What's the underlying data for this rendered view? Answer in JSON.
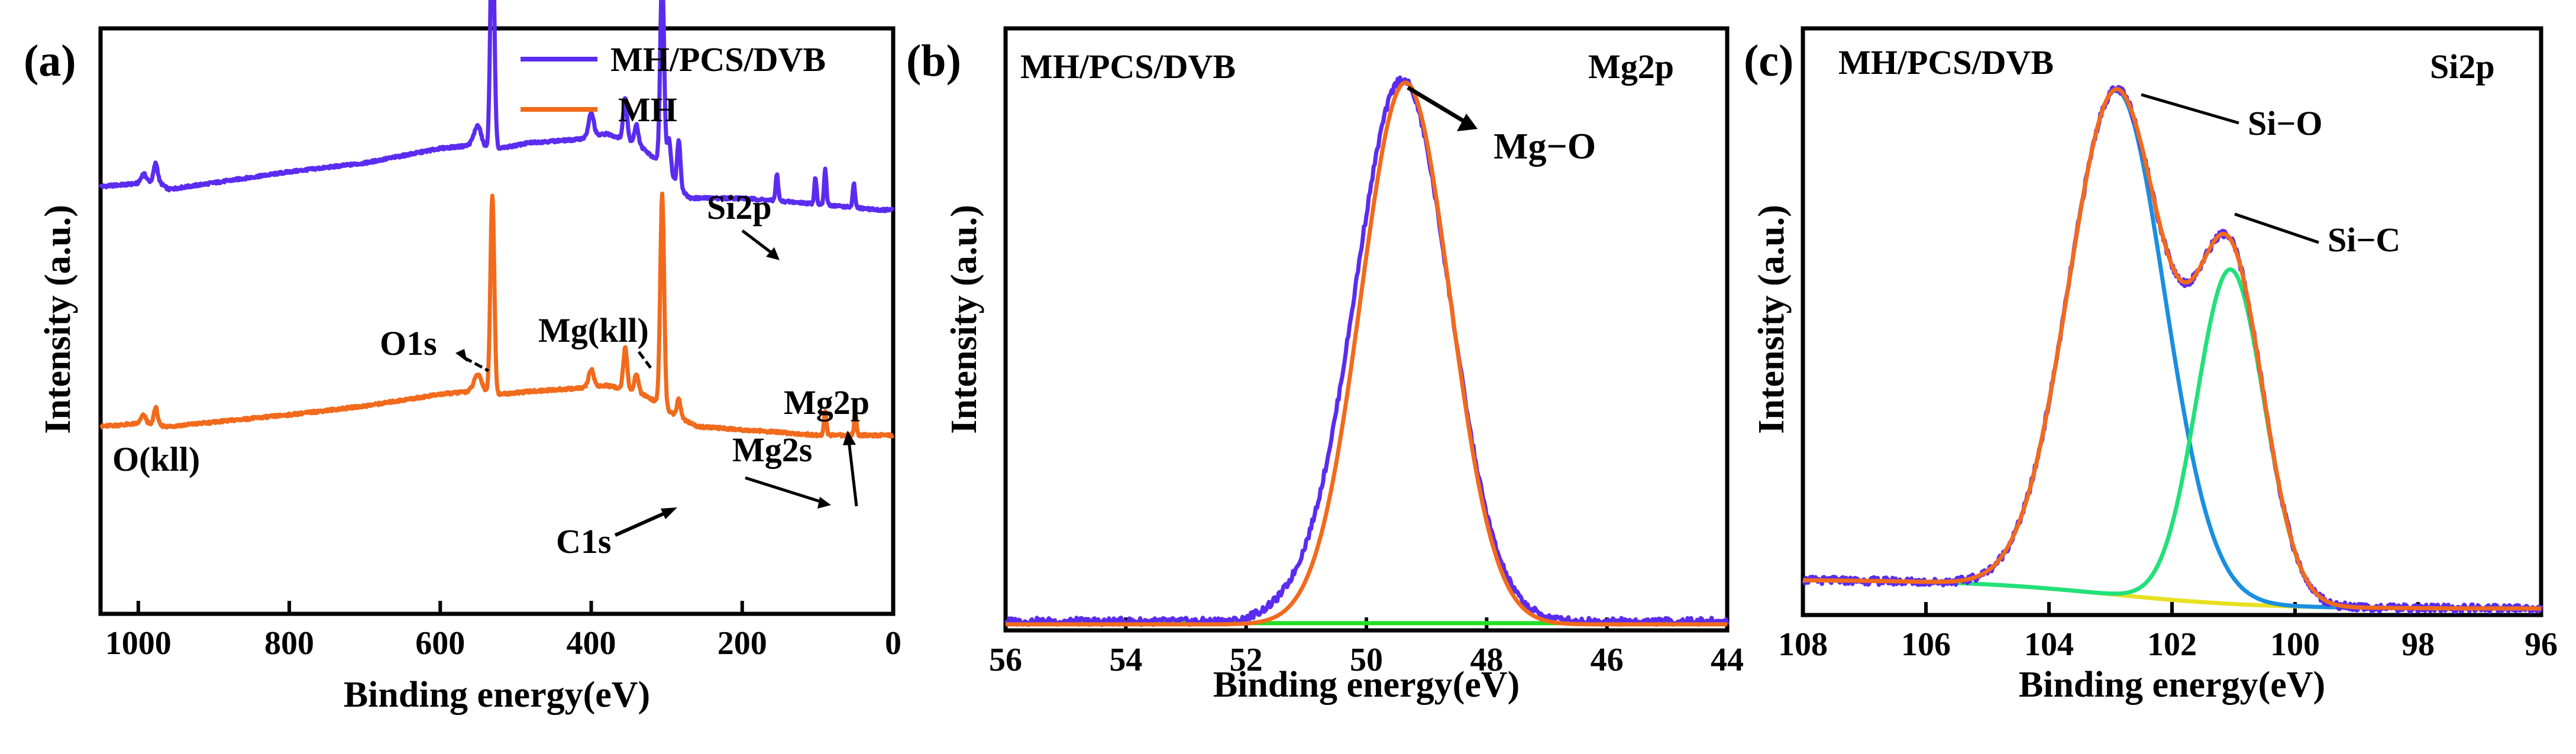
{
  "chart_data": [
    {
      "type": "line",
      "panel_label": "(a)",
      "xlabel": "Binding energy(eV)",
      "ylabel": "Intensity (a.u.)",
      "xlim": [
        1050,
        0
      ],
      "ylim": [
        0,
        100
      ],
      "xticks": [
        "1000",
        "800",
        "600",
        "400",
        "200",
        "0"
      ],
      "xtick_values": [
        1000,
        800,
        600,
        400,
        200,
        0
      ],
      "legend": [
        "MH/PCS/DVB",
        "MH"
      ],
      "series": [
        {
          "name": "MH/PCS/DVB",
          "color": "#5b2cf0",
          "baseline": [
            [
              1050,
              73
            ],
            [
              1000,
              73.5
            ],
            [
              975,
              74
            ],
            [
              960,
              72.5
            ],
            [
              800,
              75.5
            ],
            [
              700,
              77
            ],
            [
              600,
              79.5
            ],
            [
              560,
              80
            ],
            [
              545,
              79
            ],
            [
              520,
              79.5
            ],
            [
              480,
              80.5
            ],
            [
              420,
              81
            ],
            [
              380,
              82
            ],
            [
              340,
              80.5
            ],
            [
              310,
              77
            ],
            [
              290,
              74
            ],
            [
              270,
              71
            ],
            [
              200,
              71
            ],
            [
              150,
              70.5
            ],
            [
              100,
              70
            ],
            [
              60,
              69.5
            ],
            [
              20,
              69
            ],
            [
              0,
              69
            ]
          ],
          "peaks": [
            [
              993,
              1.5,
              4
            ],
            [
              977,
              3,
              3
            ],
            [
              550,
              4,
              6
            ],
            [
              531,
              41,
              3
            ],
            [
              400,
              4,
              4
            ],
            [
              355,
              7,
              3
            ],
            [
              340,
              3,
              3
            ],
            [
              306,
              33,
              3
            ],
            [
              297,
              6,
              3
            ],
            [
              284,
              8,
              2.5
            ],
            [
              154,
              4.5,
              2
            ],
            [
              103,
              4.5,
              1.8
            ],
            [
              90,
              6,
              1.8
            ],
            [
              52,
              4,
              1.8
            ]
          ]
        },
        {
          "name": "MH",
          "color": "#f26a1c",
          "baseline": [
            [
              1050,
              32
            ],
            [
              1000,
              32.5
            ],
            [
              960,
              32
            ],
            [
              800,
              34
            ],
            [
              700,
              35.5
            ],
            [
              600,
              37.5
            ],
            [
              560,
              38
            ],
            [
              520,
              37.5
            ],
            [
              480,
              38
            ],
            [
              420,
              38.5
            ],
            [
              380,
              39
            ],
            [
              340,
              38
            ],
            [
              310,
              36
            ],
            [
              290,
              34
            ],
            [
              260,
              32
            ],
            [
              150,
              31
            ],
            [
              100,
              30.5
            ],
            [
              0,
              30.5
            ]
          ],
          "peaks": [
            [
              993,
              1.5,
              4
            ],
            [
              977,
              3,
              3
            ],
            [
              550,
              3,
              6
            ],
            [
              531,
              34,
              3
            ],
            [
              400,
              3,
              4
            ],
            [
              355,
              7,
              3
            ],
            [
              340,
              3,
              3
            ],
            [
              306,
              36,
              3
            ],
            [
              284,
              3,
              3
            ],
            [
              90,
              4,
              2
            ],
            [
              50,
              4,
              1.8
            ]
          ]
        }
      ],
      "annotations": [
        "O1s",
        "Mg(kll)",
        "O(kll)",
        "Si2p",
        "Mg2s",
        "Mg2p",
        "C1s"
      ]
    },
    {
      "type": "line",
      "panel_label": "(b)",
      "title_left": "MH/PCS/DVB",
      "title_right": "Mg2p",
      "xlabel": "Binding energy(eV)",
      "ylabel": "Intensity (a.u.)",
      "xlim": [
        56,
        44
      ],
      "ylim": [
        0,
        100
      ],
      "xticks": [
        "56",
        "54",
        "52",
        "50",
        "48",
        "46",
        "44"
      ],
      "xtick_values": [
        56,
        54,
        52,
        50,
        48,
        46,
        44
      ],
      "series": [
        {
          "name": "raw",
          "color": "#5b2cf0",
          "center": 49.4,
          "sigma": 0.78,
          "amp": 90,
          "base": 1.5
        },
        {
          "name": "fit",
          "color": "#f26a1c",
          "center": 49.35,
          "sigma": 0.74,
          "amp": 90,
          "base": 1
        },
        {
          "name": "background",
          "color": "#22e022",
          "level": 1.2
        }
      ],
      "annotations": [
        "Mg−O"
      ]
    },
    {
      "type": "line",
      "panel_label": "(c)",
      "title_left": "MH/PCS/DVB",
      "title_right": "Si2p",
      "xlabel": "Binding energy(eV)",
      "ylabel": "Intensity (a.u.)",
      "xlim": [
        108,
        96
      ],
      "ylim": [
        0,
        100
      ],
      "xticks": [
        "108",
        "106",
        "104",
        "102",
        "100",
        "98",
        "96"
      ],
      "xtick_values": [
        108,
        106,
        104,
        102,
        100,
        98,
        96
      ],
      "components": [
        {
          "name": "Si−O",
          "color": "#1a8fe0",
          "center": 102.9,
          "sigma": 0.78,
          "amp": 86
        },
        {
          "name": "Si−C",
          "color": "#22e07a",
          "center": 101.05,
          "sigma": 0.55,
          "amp": 57
        }
      ],
      "background": {
        "color": "#e8e020",
        "left": 6,
        "right": 1,
        "mid": 103
      },
      "series": [
        {
          "name": "raw",
          "color": "#5b2cf0"
        },
        {
          "name": "fit",
          "color": "#f26a1c"
        }
      ],
      "annotations": [
        "Si−O",
        "Si−C"
      ]
    }
  ]
}
